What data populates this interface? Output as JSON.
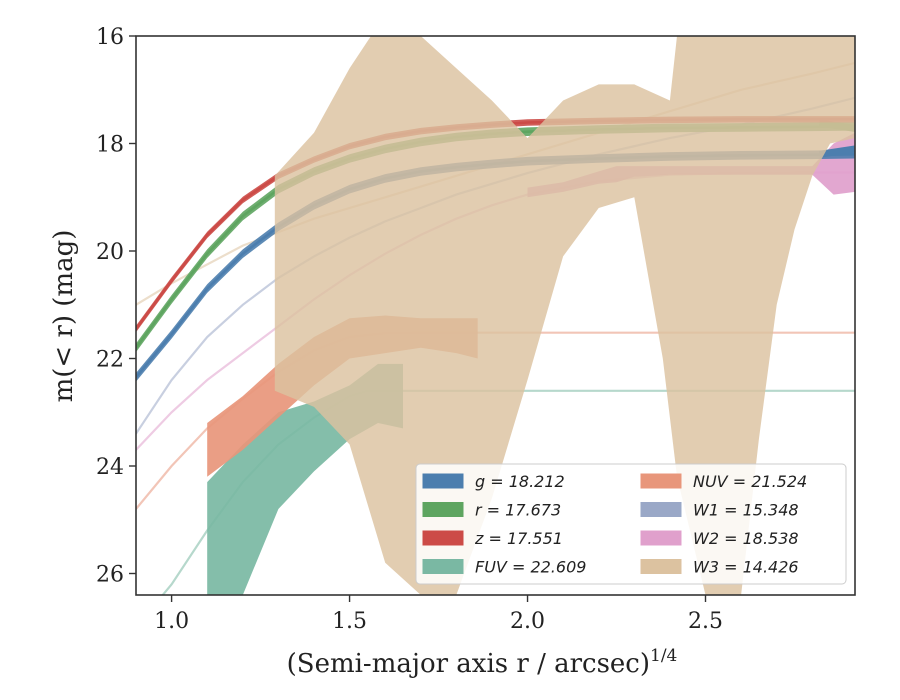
{
  "chart_data": {
    "type": "line",
    "xlabel": "(Semi-major axis r / arcsec)",
    "xlabel_superscript": "1/4",
    "ylabel": "m(< r) (mag)",
    "xlim": [
      0.9,
      2.92
    ],
    "ylim": [
      26.4,
      16.0
    ],
    "y_inverted": true,
    "x_ticks": [
      1.0,
      1.5,
      2.0,
      2.5
    ],
    "x_tick_labels": [
      "1.0",
      "1.5",
      "2.0",
      "2.5"
    ],
    "y_ticks": [
      16,
      18,
      20,
      22,
      24,
      26
    ],
    "y_tick_labels": [
      "16",
      "18",
      "20",
      "22",
      "24",
      "26"
    ],
    "grid": false,
    "legend_position": "lower-right",
    "series": [
      {
        "key": "g",
        "name": "g = 18.212",
        "color": "#4c7eae",
        "x": [
          0.9,
          1.0,
          1.1,
          1.2,
          1.3,
          1.4,
          1.5,
          1.6,
          1.7,
          1.8,
          1.9,
          2.0,
          2.2,
          2.4,
          2.6,
          2.8,
          2.92
        ],
        "y": [
          22.35,
          21.55,
          20.7,
          20.05,
          19.55,
          19.15,
          18.85,
          18.65,
          18.52,
          18.44,
          18.38,
          18.33,
          18.28,
          18.24,
          18.22,
          18.21,
          18.2
        ],
        "band": 0.08,
        "tail_x": [
          2.82,
          2.92
        ],
        "tail_y": [
          18.2,
          18.1
        ],
        "tail_band": 0.12,
        "faint_x": [],
        "faint_y": []
      },
      {
        "key": "r",
        "name": "r = 17.673",
        "color": "#5ea560",
        "x": [
          0.9,
          1.0,
          1.1,
          1.2,
          1.3,
          1.4,
          1.5,
          1.6,
          1.7,
          1.8,
          1.9,
          2.0,
          2.2,
          2.4,
          2.6,
          2.8,
          2.92
        ],
        "y": [
          21.8,
          20.9,
          20.05,
          19.35,
          18.85,
          18.52,
          18.28,
          18.1,
          17.97,
          17.88,
          17.82,
          17.78,
          17.74,
          17.71,
          17.7,
          17.69,
          17.68
        ],
        "band": 0.08,
        "tail_x": [
          2.82,
          2.92
        ],
        "tail_y": [
          17.62,
          17.72
        ],
        "tail_band": 0.12,
        "faint_x": [],
        "faint_y": []
      },
      {
        "key": "z",
        "name": "z = 17.551",
        "color": "#cc4b47",
        "x": [
          0.9,
          1.0,
          1.1,
          1.2,
          1.3,
          1.4,
          1.5,
          1.6,
          1.7,
          1.8,
          1.9,
          2.0,
          2.2,
          2.4,
          2.6,
          2.8,
          2.92
        ],
        "y": [
          21.45,
          20.55,
          19.7,
          19.05,
          18.6,
          18.3,
          18.05,
          17.88,
          17.77,
          17.7,
          17.65,
          17.61,
          17.58,
          17.56,
          17.55,
          17.55,
          17.55
        ],
        "band": 0.06,
        "tail_x": [],
        "tail_y": [],
        "tail_band": 0,
        "faint_x": [],
        "faint_y": []
      },
      {
        "key": "FUV",
        "name": "FUV = 22.609",
        "color": "#7ab8a3",
        "x": [
          1.1,
          1.2,
          1.3,
          1.4,
          1.5,
          1.58,
          1.65
        ],
        "y": [
          25.3,
          24.7,
          23.9,
          23.45,
          23.0,
          22.65,
          22.6
        ],
        "band_upper": [
          24.3,
          23.6,
          23.0,
          22.8,
          22.5,
          22.1,
          22.1
        ],
        "band_lower": [
          26.4,
          26.4,
          24.8,
          24.1,
          23.5,
          23.2,
          23.3
        ],
        "faint_x": [
          0.9,
          1.0,
          1.1,
          1.2,
          1.3,
          1.4,
          1.5,
          1.55,
          1.6,
          2.0,
          2.5,
          2.92
        ],
        "faint_y": [
          27.0,
          26.2,
          25.2,
          24.3,
          23.6,
          23.1,
          22.7,
          22.6,
          22.6,
          22.6,
          22.6,
          22.6
        ]
      },
      {
        "key": "NUV",
        "name": "NUV = 21.524",
        "color": "#e8967b",
        "x": [
          1.1,
          1.2,
          1.3,
          1.4,
          1.5,
          1.6,
          1.7,
          1.8,
          1.86
        ],
        "y": [
          23.7,
          23.2,
          22.6,
          22.05,
          21.65,
          21.55,
          21.52,
          21.52,
          21.52
        ],
        "band_upper": [
          23.2,
          22.7,
          22.1,
          21.6,
          21.25,
          21.2,
          21.25,
          21.25,
          21.25
        ],
        "band_lower": [
          24.2,
          23.7,
          23.1,
          22.5,
          22.0,
          21.9,
          21.8,
          21.9,
          22.0
        ],
        "faint_x": [
          0.9,
          1.0,
          1.1,
          1.2,
          1.3,
          1.4,
          1.5,
          1.6,
          1.7,
          2.0,
          2.5,
          2.92
        ],
        "faint_y": [
          24.8,
          24.0,
          23.3,
          22.75,
          22.25,
          21.85,
          21.6,
          21.53,
          21.52,
          21.52,
          21.52,
          21.52
        ]
      },
      {
        "key": "W1",
        "name": "W1 = 15.348",
        "color": "#9aa8c7",
        "x": [],
        "y": [],
        "faint_x": [
          0.9,
          1.0,
          1.1,
          1.2,
          1.3,
          1.4,
          1.5,
          1.6,
          1.7,
          1.8,
          1.9,
          2.0,
          2.2,
          2.4,
          2.6,
          2.8,
          2.92
        ],
        "faint_y": [
          23.4,
          22.4,
          21.6,
          21.0,
          20.5,
          20.1,
          19.75,
          19.45,
          19.2,
          18.95,
          18.75,
          18.55,
          18.2,
          17.9,
          17.65,
          17.35,
          17.15
        ]
      },
      {
        "key": "W2",
        "name": "W2 = 18.538",
        "color": "#e0a0cc",
        "x": [
          2.0,
          2.1,
          2.2,
          2.25,
          2.3,
          2.4,
          2.5,
          2.6,
          2.7,
          2.8,
          2.86,
          2.92
        ],
        "y": [
          18.92,
          18.8,
          18.65,
          18.58,
          18.52,
          18.5,
          18.5,
          18.5,
          18.5,
          18.5,
          18.4,
          18.38
        ],
        "band_upper": [
          18.82,
          18.72,
          18.52,
          18.42,
          18.42,
          18.42,
          18.42,
          18.42,
          18.42,
          18.42,
          18.0,
          17.8
        ],
        "band_lower": [
          19.0,
          18.9,
          18.75,
          18.72,
          18.62,
          18.58,
          18.58,
          18.58,
          18.58,
          18.58,
          18.95,
          18.9
        ],
        "faint_x": [
          0.9,
          1.0,
          1.1,
          1.2,
          1.3,
          1.4,
          1.5,
          1.6,
          1.7,
          1.8,
          1.9,
          2.0,
          2.2,
          2.4,
          2.6,
          2.8,
          2.92
        ],
        "faint_y": [
          23.7,
          23.0,
          22.4,
          21.9,
          21.4,
          20.9,
          20.45,
          20.05,
          19.7,
          19.4,
          19.15,
          18.95,
          18.7,
          18.58,
          18.55,
          18.54,
          18.54
        ]
      },
      {
        "key": "W3",
        "name": "W3 = 14.426",
        "color": "#dcc2a0",
        "band_upper_x": [
          1.29,
          1.4,
          1.5,
          1.6,
          1.7,
          1.8,
          1.85,
          1.9,
          2.0,
          2.1,
          2.2,
          2.3,
          2.4,
          2.42,
          2.5,
          2.6,
          2.7,
          2.8,
          2.85,
          2.92
        ],
        "band_upper_y": [
          18.6,
          17.8,
          16.6,
          15.6,
          16.0,
          16.6,
          16.9,
          17.2,
          17.9,
          17.2,
          16.9,
          16.9,
          17.2,
          16.0,
          15.6,
          15.6,
          15.8,
          16.0,
          15.6,
          15.6
        ],
        "band_lower_x": [
          1.29,
          1.4,
          1.5,
          1.6,
          1.7,
          1.8,
          1.9,
          2.0,
          2.1,
          2.2,
          2.3,
          2.38,
          2.42,
          2.5,
          2.55,
          2.6,
          2.65,
          2.7,
          2.75,
          2.8,
          2.85,
          2.92
        ],
        "band_lower_y": [
          22.6,
          22.9,
          23.6,
          25.8,
          26.4,
          26.4,
          24.6,
          22.4,
          20.1,
          19.2,
          19.0,
          22.0,
          24.2,
          26.4,
          26.4,
          26.4,
          23.5,
          21.0,
          19.6,
          18.6,
          18.0,
          17.9
        ],
        "faint_x": [
          0.9,
          1.0,
          1.2,
          1.4,
          1.6,
          1.8,
          2.0,
          2.2,
          2.4,
          2.6,
          2.8,
          2.92
        ],
        "faint_y": [
          21.0,
          20.6,
          19.9,
          19.4,
          19.0,
          18.6,
          18.2,
          17.8,
          17.4,
          17.0,
          16.7,
          16.5
        ]
      }
    ],
    "legend": [
      {
        "label": "g = 18.212",
        "color": "#4c7eae"
      },
      {
        "label": "r = 17.673",
        "color": "#5ea560"
      },
      {
        "label": "z = 17.551",
        "color": "#cc4b47"
      },
      {
        "label": "FUV = 22.609",
        "color": "#7ab8a3"
      },
      {
        "label": "NUV = 21.524",
        "color": "#e8967b"
      },
      {
        "label": "W1 = 15.348",
        "color": "#9aa8c7"
      },
      {
        "label": "W2 = 18.538",
        "color": "#e0a0cc"
      },
      {
        "label": "W3 = 14.426",
        "color": "#dcc2a0"
      }
    ]
  }
}
